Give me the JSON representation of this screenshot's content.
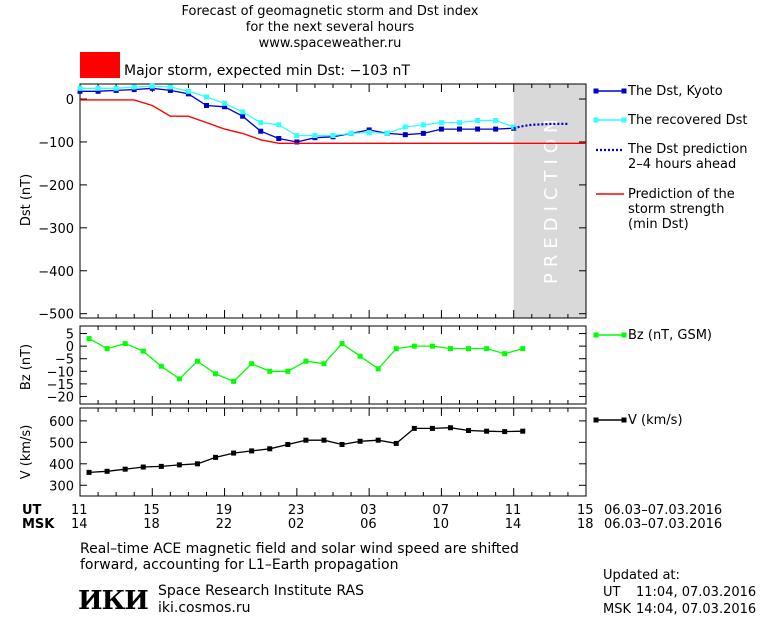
{
  "title": {
    "line1": "Forecast of geomagnetic storm and Dst index",
    "line2": "for the next several hours",
    "line3": "www.spaceweather.ru"
  },
  "storm_status": {
    "label": "Major storm, expected min Dst: −103 nT",
    "color": "#ff0000"
  },
  "legend": {
    "dst_kyoto": "The Dst, Kyoto",
    "recovered": "The recovered Dst",
    "prediction_l1": "The Dst prediction",
    "prediction_l2": "2–4 hours ahead",
    "strength_l1": "Prediction of the",
    "strength_l2": "storm strength",
    "strength_l3": "(min Dst)",
    "bz": "Bz (nT, GSM)",
    "v": "V (km/s)"
  },
  "prediction_label": "PREDICTION",
  "time_axis": {
    "ut_label": "UT",
    "msk_label": "MSK",
    "ut_ticks": [
      "11",
      "15",
      "19",
      "23",
      "03",
      "07",
      "11",
      "15"
    ],
    "msk_ticks": [
      "14",
      "18",
      "22",
      "02",
      "06",
      "10",
      "14",
      "18"
    ],
    "date_range_ut": "06.03–07.03.2016",
    "date_range_msk": "06.03–07.03.2016"
  },
  "footer": {
    "note_l1": "Real–time ACE magnetic field and solar wind speed are shifted",
    "note_l2": "forward, accounting for L1–Earth propagation",
    "logo_text": "ИКИ",
    "institute": "Space Research Institute RAS",
    "site": "iki.cosmos.ru",
    "updated_label": "Updated at:",
    "updated_ut_label": "UT",
    "updated_ut": "11:04, 07.03.2016",
    "updated_msk_label": "MSK",
    "updated_msk": "14:04, 07.03.2016"
  },
  "colors": {
    "dst": "#0000cc",
    "recovered": "#33ffff",
    "prediction": "#0000cc",
    "strength": "#ff0000",
    "bz": "#00ff00",
    "v": "#000000",
    "prediction_zone": "#d9d9d9"
  },
  "chart_data": [
    {
      "type": "line",
      "xlabel": "",
      "ylabel": "Dst (nT)",
      "xlim": [
        11,
        39
      ],
      "ylim": [
        -510,
        35
      ],
      "yticks": [
        0,
        -100,
        -200,
        -300,
        -400,
        -500
      ],
      "prediction_zone": [
        35,
        39
      ],
      "series": [
        {
          "name": "The Dst, Kyoto",
          "x": [
            11,
            12,
            13,
            14,
            15,
            16,
            17,
            18,
            19,
            20,
            21,
            22,
            23,
            24,
            25,
            26,
            27,
            28,
            29,
            30,
            31,
            32,
            33,
            34,
            35
          ],
          "y": [
            18,
            18,
            20,
            22,
            25,
            20,
            12,
            -15,
            -18,
            -40,
            -75,
            -92,
            -100,
            -90,
            -88,
            -80,
            -72,
            -80,
            -83,
            -80,
            -70,
            -70,
            -70,
            -70,
            -68
          ]
        },
        {
          "name": "The recovered Dst",
          "x": [
            11,
            12,
            13,
            14,
            15,
            16,
            17,
            18,
            19,
            20,
            21,
            22,
            23,
            24,
            25,
            26,
            27,
            28,
            29,
            30,
            31,
            32,
            33,
            34,
            35
          ],
          "y": [
            25,
            25,
            25,
            28,
            30,
            28,
            18,
            5,
            -10,
            -30,
            -55,
            -60,
            -85,
            -85,
            -85,
            -80,
            -78,
            -80,
            -65,
            -60,
            -55,
            -55,
            -50,
            -50,
            -65
          ]
        },
        {
          "name": "The Dst prediction 2–4 hours ahead",
          "x": [
            35,
            35.5,
            36,
            36.5,
            37,
            37.5,
            38
          ],
          "y": [
            -68,
            -63,
            -60,
            -59,
            -58,
            -58,
            -58
          ]
        },
        {
          "name": "Prediction of the storm strength (min Dst)",
          "x": [
            11,
            12,
            13,
            14,
            15,
            16,
            17,
            18,
            19,
            20,
            21,
            22,
            23,
            24,
            25,
            26,
            27,
            28,
            29,
            30,
            31,
            32,
            33,
            34,
            35,
            36,
            37,
            38,
            39
          ],
          "y": [
            -2,
            -2,
            -2,
            -2,
            -15,
            -40,
            -40,
            -55,
            -70,
            -80,
            -95,
            -103,
            -103,
            -103,
            -103,
            -103,
            -103,
            -103,
            -103,
            -103,
            -103,
            -103,
            -103,
            -103,
            -103,
            -103,
            -103,
            -103,
            -103
          ]
        }
      ]
    },
    {
      "type": "line",
      "xlabel": "",
      "ylabel": "Bz (nT)",
      "xlim": [
        11,
        39
      ],
      "ylim": [
        -23,
        8
      ],
      "yticks": [
        5,
        0,
        -5,
        -10,
        -15,
        -20
      ],
      "series": [
        {
          "name": "Bz (nT, GSM)",
          "x": [
            11.5,
            12.5,
            13.5,
            14.5,
            15.5,
            16.5,
            17.5,
            18.5,
            19.5,
            20.5,
            21.5,
            22.5,
            23.5,
            24.5,
            25.5,
            26.5,
            27.5,
            28.5,
            29.5,
            30.5,
            31.5,
            32.5,
            33.5,
            34.5,
            35.5
          ],
          "y": [
            3,
            -1,
            1,
            -2,
            -8,
            -13,
            -6,
            -11,
            -14,
            -7,
            -10,
            -10,
            -6,
            -7,
            1,
            -4,
            -9,
            -1,
            0,
            0,
            -1,
            -1,
            -1,
            -3,
            -1
          ]
        }
      ]
    },
    {
      "type": "line",
      "xlabel": "",
      "ylabel": "V (km/s)",
      "xlim": [
        11,
        39
      ],
      "ylim": [
        250,
        660
      ],
      "yticks": [
        600,
        500,
        400,
        300
      ],
      "series": [
        {
          "name": "V (km/s)",
          "x": [
            11.5,
            12.5,
            13.5,
            14.5,
            15.5,
            16.5,
            17.5,
            18.5,
            19.5,
            20.5,
            21.5,
            22.5,
            23.5,
            24.5,
            25.5,
            26.5,
            27.5,
            28.5,
            29.5,
            30.5,
            31.5,
            32.5,
            33.5,
            34.5,
            35.5
          ],
          "y": [
            360,
            365,
            375,
            385,
            388,
            395,
            400,
            430,
            450,
            460,
            470,
            490,
            510,
            510,
            490,
            505,
            510,
            495,
            565,
            565,
            568,
            555,
            552,
            550,
            552
          ]
        }
      ]
    }
  ]
}
